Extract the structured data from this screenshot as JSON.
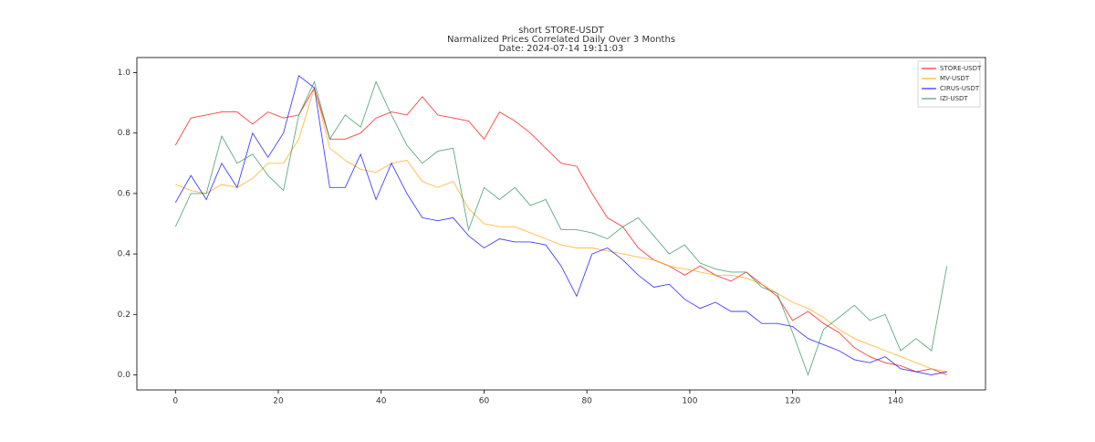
{
  "chart_data": {
    "type": "line",
    "title": [
      "short STORE-USDT",
      "Narmalized Prices Correlated Daily Over 3 Months",
      "Date: 2024-07-14 19:11:03"
    ],
    "x": [
      0,
      3,
      6,
      9,
      12,
      15,
      18,
      21,
      24,
      27,
      30,
      33,
      36,
      39,
      42,
      45,
      48,
      51,
      54,
      57,
      60,
      63,
      66,
      69,
      72,
      75,
      78,
      81,
      84,
      87,
      90,
      93,
      96,
      99,
      102,
      105,
      108,
      111,
      114,
      117,
      120,
      123,
      126,
      129,
      132,
      135,
      138,
      141,
      144,
      147,
      150
    ],
    "series": [
      {
        "name": "STORE-USDT",
        "color": "#ff0000",
        "values": [
          0.76,
          0.85,
          0.86,
          0.87,
          0.87,
          0.83,
          0.87,
          0.85,
          0.86,
          0.95,
          0.78,
          0.78,
          0.8,
          0.85,
          0.87,
          0.86,
          0.92,
          0.86,
          0.85,
          0.84,
          0.78,
          0.87,
          0.84,
          0.8,
          0.75,
          0.7,
          0.69,
          0.6,
          0.52,
          0.49,
          0.42,
          0.38,
          0.36,
          0.33,
          0.36,
          0.33,
          0.31,
          0.34,
          0.3,
          0.26,
          0.18,
          0.21,
          0.17,
          0.14,
          0.09,
          0.06,
          0.04,
          0.03,
          0.01,
          0.02,
          0.0
        ]
      },
      {
        "name": "MV-USDT",
        "color": "#ffa500",
        "values": [
          0.63,
          0.61,
          0.6,
          0.63,
          0.62,
          0.65,
          0.7,
          0.7,
          0.78,
          0.95,
          0.75,
          0.71,
          0.68,
          0.67,
          0.7,
          0.71,
          0.64,
          0.62,
          0.64,
          0.55,
          0.5,
          0.49,
          0.49,
          0.47,
          0.45,
          0.43,
          0.42,
          0.42,
          0.41,
          0.4,
          0.39,
          0.38,
          0.36,
          0.35,
          0.34,
          0.33,
          0.33,
          0.32,
          0.3,
          0.27,
          0.24,
          0.22,
          0.19,
          0.15,
          0.12,
          0.1,
          0.08,
          0.06,
          0.04,
          0.02,
          0.01
        ]
      },
      {
        "name": "CIRUS-USDT",
        "color": "#0000ff",
        "values": [
          0.57,
          0.66,
          0.58,
          0.7,
          0.62,
          0.8,
          0.72,
          0.8,
          0.99,
          0.95,
          0.62,
          0.62,
          0.73,
          0.58,
          0.7,
          0.6,
          0.52,
          0.51,
          0.52,
          0.46,
          0.42,
          0.45,
          0.44,
          0.44,
          0.43,
          0.36,
          0.26,
          0.4,
          0.42,
          0.38,
          0.33,
          0.29,
          0.3,
          0.25,
          0.22,
          0.24,
          0.21,
          0.21,
          0.17,
          0.17,
          0.16,
          0.12,
          0.1,
          0.08,
          0.05,
          0.04,
          0.06,
          0.02,
          0.01,
          0.0,
          0.01
        ]
      },
      {
        "name": "IZI-USDT",
        "color": "#2e8b57",
        "values": [
          0.49,
          0.6,
          0.6,
          0.79,
          0.7,
          0.73,
          0.66,
          0.61,
          0.86,
          0.97,
          0.78,
          0.86,
          0.82,
          0.97,
          0.86,
          0.76,
          0.7,
          0.74,
          0.75,
          0.48,
          0.62,
          0.58,
          0.62,
          0.56,
          0.58,
          0.48,
          0.48,
          0.47,
          0.45,
          0.49,
          0.52,
          0.46,
          0.4,
          0.43,
          0.37,
          0.35,
          0.34,
          0.34,
          0.29,
          0.27,
          0.14,
          0.0,
          0.15,
          0.19,
          0.23,
          0.18,
          0.2,
          0.08,
          0.12,
          0.08,
          0.36
        ]
      }
    ],
    "xlim": [
      -7.5,
      157.5
    ],
    "ylim": [
      -0.05,
      1.05
    ],
    "xticks": [
      0,
      20,
      40,
      60,
      80,
      100,
      120,
      140
    ],
    "yticks": [
      {
        "value": 0,
        "label": "0.0"
      },
      0.2,
      0.4,
      0.6,
      0.8,
      {
        "value": 1,
        "label": "1.0"
      }
    ],
    "legend": "upper right"
  }
}
